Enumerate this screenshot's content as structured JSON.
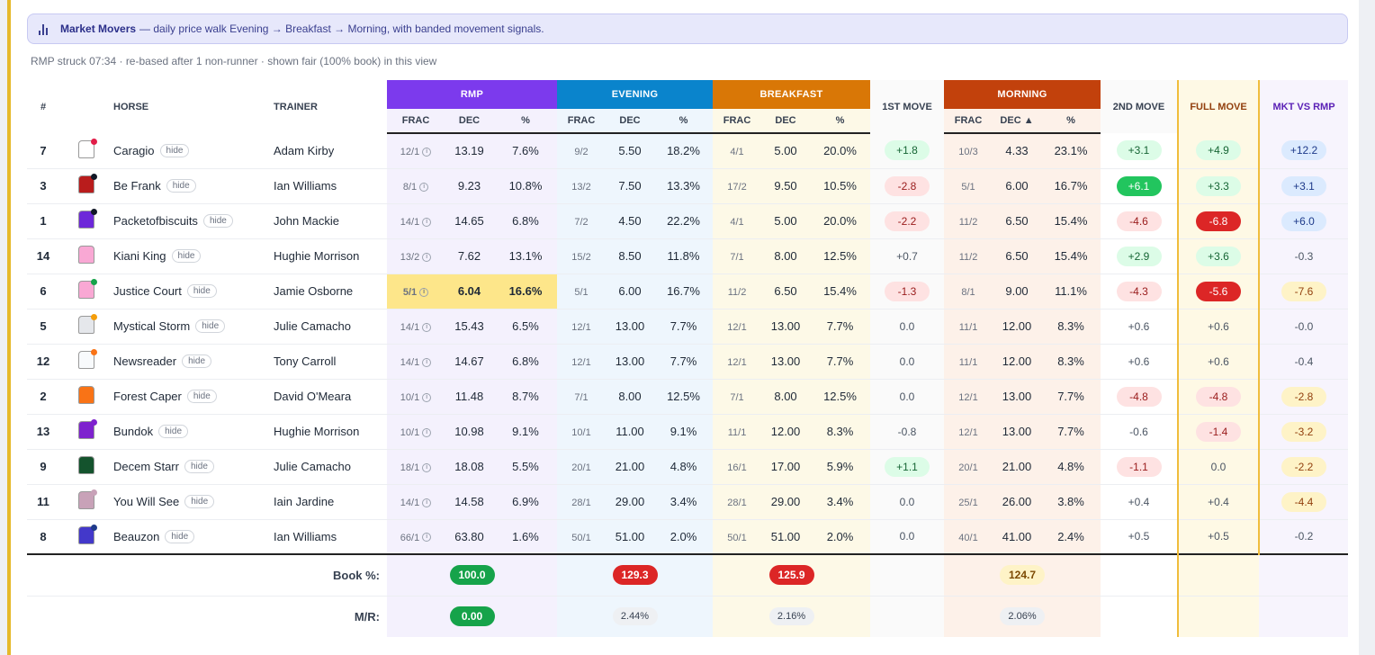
{
  "banner": {
    "icon": "bar-chart-icon",
    "title": "Market Movers",
    "text": "— daily price walk Evening → Breakfast → Morning, with banded movement signals."
  },
  "subtitle": "RMP struck 07:34 · re-based after 1 non-runner · shown fair (100% book) in this view",
  "headers": {
    "num": "#",
    "horse": "HORSE",
    "trainer": "TRAINER",
    "rmp": "RMP",
    "evening": "EVENING",
    "breakfast": "BREAKFAST",
    "move1": "1ST MOVE",
    "morning": "MORNING",
    "move2": "2ND MOVE",
    "full": "FULL MOVE",
    "mkt": "MKT VS RMP",
    "frac": "FRAC",
    "dec": "DEC",
    "dec_sorted": "DEC ▲",
    "pct": "%"
  },
  "hide_label": "hide",
  "colors": {
    "rmp": "#7c3aed",
    "evening": "#0a84cc",
    "breakfast": "#d97706",
    "morning": "#c2410c",
    "highlight": "#fde68a"
  },
  "rows": [
    {
      "num": "7",
      "horse": "Caragio",
      "trainer": "Adam Kirby",
      "silk": "#ffffff",
      "dot": "#e11d48",
      "rmp": [
        "12/1",
        "13.19",
        "7.6%"
      ],
      "eve": [
        "9/2",
        "5.50",
        "18.2%"
      ],
      "bre": [
        "4/1",
        "5.00",
        "20.0%"
      ],
      "m1": [
        "+1.8",
        "pg"
      ],
      "mor": [
        "10/3",
        "4.33",
        "23.1%"
      ],
      "m2": [
        "+3.1",
        "pg"
      ],
      "full": [
        "+4.9",
        "pg"
      ],
      "mkt": [
        "+12.2",
        "pb"
      ]
    },
    {
      "num": "3",
      "horse": "Be Frank",
      "trainer": "Ian Williams",
      "silk": "#b91c1c",
      "dot": "#111827",
      "rmp": [
        "8/1",
        "9.23",
        "10.8%"
      ],
      "eve": [
        "13/2",
        "7.50",
        "13.3%"
      ],
      "bre": [
        "17/2",
        "9.50",
        "10.5%"
      ],
      "m1": [
        "-2.8",
        "pr"
      ],
      "mor": [
        "5/1",
        "6.00",
        "16.7%"
      ],
      "m2": [
        "+6.1",
        "pG"
      ],
      "full": [
        "+3.3",
        "pg"
      ],
      "mkt": [
        "+3.1",
        "pb"
      ]
    },
    {
      "num": "1",
      "horse": "Packetofbiscuits",
      "trainer": "John Mackie",
      "silk": "#6d28d9",
      "dot": "#111827",
      "rmp": [
        "14/1",
        "14.65",
        "6.8%"
      ],
      "eve": [
        "7/2",
        "4.50",
        "22.2%"
      ],
      "bre": [
        "4/1",
        "5.00",
        "20.0%"
      ],
      "m1": [
        "-2.2",
        "pr"
      ],
      "mor": [
        "11/2",
        "6.50",
        "15.4%"
      ],
      "m2": [
        "-4.6",
        "pr"
      ],
      "full": [
        "-6.8",
        "pR"
      ],
      "mkt": [
        "+6.0",
        "pb"
      ]
    },
    {
      "num": "14",
      "horse": "Kiani King",
      "trainer": "Hughie Morrison",
      "silk": "#f9a8d4",
      "dot": "",
      "rmp": [
        "13/2",
        "7.62",
        "13.1%"
      ],
      "eve": [
        "15/2",
        "8.50",
        "11.8%"
      ],
      "bre": [
        "7/1",
        "8.00",
        "12.5%"
      ],
      "m1": [
        "+0.7",
        "pn"
      ],
      "mor": [
        "11/2",
        "6.50",
        "15.4%"
      ],
      "m2": [
        "+2.9",
        "pg"
      ],
      "full": [
        "+3.6",
        "pg"
      ],
      "mkt": [
        "-0.3",
        "pn"
      ]
    },
    {
      "num": "6",
      "horse": "Justice Court",
      "trainer": "Jamie Osborne",
      "silk": "#f9a8d4",
      "dot": "#16a34a",
      "rmp": [
        "5/1",
        "6.04",
        "16.6%"
      ],
      "eve": [
        "5/1",
        "6.00",
        "16.7%"
      ],
      "bre": [
        "11/2",
        "6.50",
        "15.4%"
      ],
      "m1": [
        "-1.3",
        "pr"
      ],
      "mor": [
        "8/1",
        "9.00",
        "11.1%"
      ],
      "m2": [
        "-4.3",
        "pr"
      ],
      "full": [
        "-5.6",
        "pR"
      ],
      "mkt": [
        "-7.6",
        "py"
      ],
      "hl": true
    },
    {
      "num": "5",
      "horse": "Mystical Storm",
      "trainer": "Julie Camacho",
      "silk": "#e5e7eb",
      "dot": "#f59e0b",
      "rmp": [
        "14/1",
        "15.43",
        "6.5%"
      ],
      "eve": [
        "12/1",
        "13.00",
        "7.7%"
      ],
      "bre": [
        "12/1",
        "13.00",
        "7.7%"
      ],
      "m1": [
        "0.0",
        "pn"
      ],
      "mor": [
        "11/1",
        "12.00",
        "8.3%"
      ],
      "m2": [
        "+0.6",
        "pn"
      ],
      "full": [
        "+0.6",
        "pn"
      ],
      "mkt": [
        "-0.0",
        "pn"
      ]
    },
    {
      "num": "12",
      "horse": "Newsreader",
      "trainer": "Tony Carroll",
      "silk": "#f8fafc",
      "dot": "#f97316",
      "rmp": [
        "14/1",
        "14.67",
        "6.8%"
      ],
      "eve": [
        "12/1",
        "13.00",
        "7.7%"
      ],
      "bre": [
        "12/1",
        "13.00",
        "7.7%"
      ],
      "m1": [
        "0.0",
        "pn"
      ],
      "mor": [
        "11/1",
        "12.00",
        "8.3%"
      ],
      "m2": [
        "+0.6",
        "pn"
      ],
      "full": [
        "+0.6",
        "pn"
      ],
      "mkt": [
        "-0.4",
        "pn"
      ]
    },
    {
      "num": "2",
      "horse": "Forest Caper",
      "trainer": "David O'Meara",
      "silk": "#f97316",
      "dot": "",
      "rmp": [
        "10/1",
        "11.48",
        "8.7%"
      ],
      "eve": [
        "7/1",
        "8.00",
        "12.5%"
      ],
      "bre": [
        "7/1",
        "8.00",
        "12.5%"
      ],
      "m1": [
        "0.0",
        "pn"
      ],
      "mor": [
        "12/1",
        "13.00",
        "7.7%"
      ],
      "m2": [
        "-4.8",
        "pr"
      ],
      "full": [
        "-4.8",
        "pr"
      ],
      "mkt": [
        "-2.8",
        "py"
      ]
    },
    {
      "num": "13",
      "horse": "Bundok",
      "trainer": "Hughie Morrison",
      "silk": "#7e22ce",
      "dot": "#7e22ce",
      "rmp": [
        "10/1",
        "10.98",
        "9.1%"
      ],
      "eve": [
        "10/1",
        "11.00",
        "9.1%"
      ],
      "bre": [
        "11/1",
        "12.00",
        "8.3%"
      ],
      "m1": [
        "-0.8",
        "pn"
      ],
      "mor": [
        "12/1",
        "13.00",
        "7.7%"
      ],
      "m2": [
        "-0.6",
        "pn"
      ],
      "full": [
        "-1.4",
        "pr"
      ],
      "mkt": [
        "-3.2",
        "py"
      ]
    },
    {
      "num": "9",
      "horse": "Decem Starr",
      "trainer": "Julie Camacho",
      "silk": "#14532d",
      "dot": "",
      "rmp": [
        "18/1",
        "18.08",
        "5.5%"
      ],
      "eve": [
        "20/1",
        "21.00",
        "4.8%"
      ],
      "bre": [
        "16/1",
        "17.00",
        "5.9%"
      ],
      "m1": [
        "+1.1",
        "pg"
      ],
      "mor": [
        "20/1",
        "21.00",
        "4.8%"
      ],
      "m2": [
        "-1.1",
        "pr"
      ],
      "full": [
        "0.0",
        "pn"
      ],
      "mkt": [
        "-2.2",
        "py"
      ]
    },
    {
      "num": "11",
      "horse": "You Will See",
      "trainer": "Iain Jardine",
      "silk": "#c8a2b8",
      "dot": "#c8a2b8",
      "rmp": [
        "14/1",
        "14.58",
        "6.9%"
      ],
      "eve": [
        "28/1",
        "29.00",
        "3.4%"
      ],
      "bre": [
        "28/1",
        "29.00",
        "3.4%"
      ],
      "m1": [
        "0.0",
        "pn"
      ],
      "mor": [
        "25/1",
        "26.00",
        "3.8%"
      ],
      "m2": [
        "+0.4",
        "pn"
      ],
      "full": [
        "+0.4",
        "pn"
      ],
      "mkt": [
        "-4.4",
        "py"
      ]
    },
    {
      "num": "8",
      "horse": "Beauzon",
      "trainer": "Ian Williams",
      "silk": "#4338ca",
      "dot": "#1e3a8a",
      "rmp": [
        "66/1",
        "63.80",
        "1.6%"
      ],
      "eve": [
        "50/1",
        "51.00",
        "2.0%"
      ],
      "bre": [
        "50/1",
        "51.00",
        "2.0%"
      ],
      "m1": [
        "0.0",
        "pn"
      ],
      "mor": [
        "40/1",
        "41.00",
        "2.4%"
      ],
      "m2": [
        "+0.5",
        "pn"
      ],
      "full": [
        "+0.5",
        "pn"
      ],
      "mkt": [
        "-0.2",
        "pn"
      ]
    }
  ],
  "footer": {
    "book_label": "Book %:",
    "mr_label": "M/R:",
    "book": {
      "rmp": "100.0",
      "eve": "129.3",
      "bre": "125.9",
      "mor": "124.7"
    },
    "mr": {
      "rmp": "0.00",
      "eve": "2.44%",
      "bre": "2.16%",
      "mor": "2.06%"
    }
  }
}
